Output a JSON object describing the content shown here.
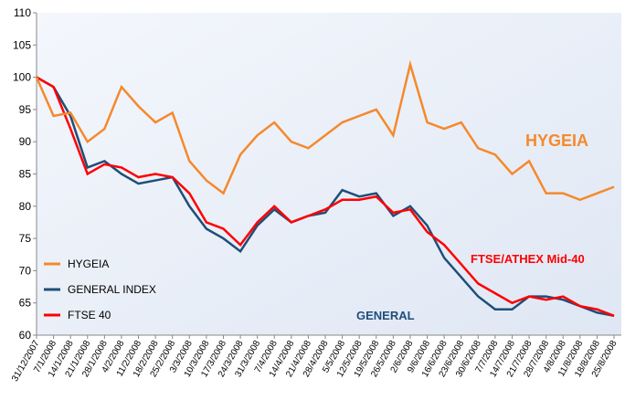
{
  "chart_data": {
    "type": "line",
    "x": [
      "31/12/2007",
      "7/1/2008",
      "14/1/2008",
      "21/1/2008",
      "28/1/2008",
      "4/2/2008",
      "11/2/2008",
      "18/2/2008",
      "25/2/2008",
      "3/3/2008",
      "10/3/2008",
      "17/3/2008",
      "24/3/2008",
      "31/3/2008",
      "7/4/2008",
      "14/4/2008",
      "21/4/2008",
      "28/4/2008",
      "5/5/2008",
      "12/5/2008",
      "19/5/2008",
      "26/5/2008",
      "2/6/2008",
      "9/6/2008",
      "16/6/2008",
      "23/6/2008",
      "30/6/2008",
      "7/7/2008",
      "14/7/2008",
      "21/7/2008",
      "28/7/2008",
      "4/8/2008",
      "11/8/2008",
      "18/8/2008",
      "25/8/2008"
    ],
    "series": [
      {
        "name": "HYGEIA",
        "color": "#f5892c",
        "values": [
          100,
          94,
          94.5,
          90,
          92,
          98.5,
          95.5,
          93,
          94.5,
          87,
          84,
          82,
          88,
          91,
          93,
          90,
          89,
          91,
          93,
          94,
          95,
          91,
          102,
          93,
          92,
          93,
          89,
          88,
          85,
          87,
          82,
          82,
          81,
          82,
          83
        ]
      },
      {
        "name": "GENERAL INDEX",
        "color": "#1f4e79",
        "values": [
          100,
          98.5,
          94,
          86,
          87,
          85,
          83.5,
          84,
          84.5,
          80,
          76.5,
          75,
          73,
          77,
          79.5,
          77.5,
          78.5,
          79,
          82.5,
          81.5,
          82,
          78.5,
          80,
          77,
          72,
          69,
          66,
          64,
          64,
          66,
          66,
          65.5,
          64.5,
          63.5,
          63
        ]
      },
      {
        "name": "FTSE 40",
        "color": "#ff0000",
        "values": [
          100,
          98.5,
          92,
          85,
          86.5,
          86,
          84.5,
          85,
          84.5,
          82,
          77.5,
          76.5,
          74,
          77.5,
          80,
          77.5,
          78.5,
          79.5,
          81,
          81,
          81.5,
          79,
          79.5,
          76,
          74,
          71,
          68,
          66.5,
          65,
          66,
          65.5,
          66,
          64.5,
          64,
          63
        ]
      }
    ],
    "annotations": [
      "HYGEIA",
      "FTSE/ATHEX Mid-40",
      "GENERAL"
    ],
    "ylim": [
      60,
      110
    ],
    "yticks": [
      60,
      65,
      70,
      75,
      80,
      85,
      90,
      95,
      100,
      105,
      110
    ],
    "grid": false,
    "legend": "left"
  }
}
